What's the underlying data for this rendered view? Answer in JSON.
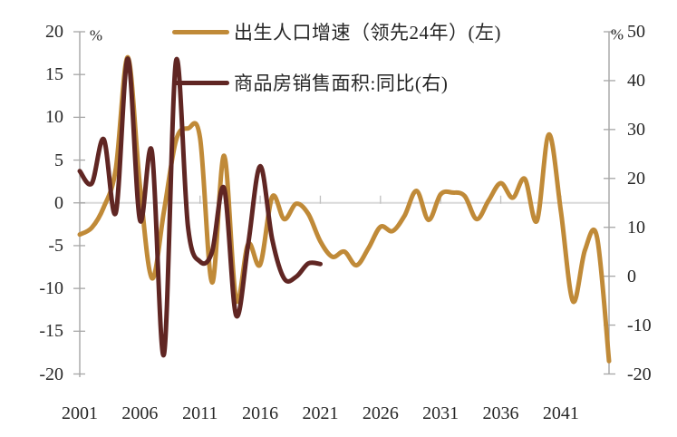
{
  "chart_data": {
    "type": "line",
    "title": "",
    "legend_position": "top",
    "grid": "zero-line-only",
    "x_axis": {
      "tick_labels": [
        "2001",
        "2006",
        "2011",
        "2016",
        "2021",
        "2026",
        "2031",
        "2036",
        "2041"
      ],
      "start_year": 2001,
      "end_year": 2045
    },
    "left_axis": {
      "unit": "%",
      "ticks": [
        "20",
        "15",
        "10",
        "5",
        "0",
        "-5",
        "-10",
        "-15",
        "-20"
      ],
      "min": -20,
      "max": 20
    },
    "right_axis": {
      "unit": "%",
      "ticks": [
        "50",
        "40",
        "30",
        "20",
        "10",
        "0",
        "-10",
        "-20"
      ],
      "min": -20,
      "max": 50
    },
    "series": [
      {
        "name": "出生人口增速（领先24年）(左)",
        "axis": "left",
        "color": "#C08A38",
        "start_year": 2001,
        "years": [
          2001,
          2002,
          2003,
          2004,
          2005,
          2006,
          2007,
          2008,
          2009,
          2010,
          2011,
          2012,
          2013,
          2014,
          2015,
          2016,
          2017,
          2018,
          2019,
          2020,
          2021,
          2022,
          2023,
          2024,
          2025,
          2026,
          2027,
          2028,
          2029,
          2030,
          2031,
          2032,
          2033,
          2034,
          2035,
          2036,
          2037,
          2038,
          2039,
          2040,
          2041,
          2042,
          2043,
          2044,
          2045
        ],
        "values": [
          -3.7,
          -2.9,
          -0.5,
          4.0,
          17.0,
          2.0,
          -8.8,
          -1.0,
          7.3,
          8.7,
          7.6,
          -9.3,
          5.5,
          -11.3,
          -4.8,
          -7.2,
          0.7,
          -1.9,
          -0.1,
          -1.3,
          -4.5,
          -6.3,
          -5.7,
          -7.3,
          -5.3,
          -2.8,
          -3.3,
          -1.5,
          1.4,
          -2.0,
          1.0,
          1.2,
          0.8,
          -1.9,
          0.3,
          2.3,
          0.6,
          2.8,
          -2.1,
          8.0,
          -1.0,
          -11.5,
          -5.5,
          -4.0,
          -18.5
        ]
      },
      {
        "name": "商品房销售面积:同比(右)",
        "axis": "right",
        "color": "#602623",
        "start_year": 2001,
        "years": [
          2001,
          2002,
          2003,
          2004,
          2005,
          2006,
          2007,
          2008,
          2009,
          2010,
          2011,
          2012,
          2013,
          2014,
          2015,
          2016,
          2017,
          2018,
          2019,
          2020,
          2021
        ],
        "values": [
          21.5,
          19.0,
          28.0,
          13.0,
          44.5,
          11.5,
          25.5,
          -16.0,
          44.0,
          10.0,
          3.0,
          5.0,
          18.0,
          -8.0,
          6.5,
          22.5,
          7.5,
          -0.5,
          -0.1,
          2.6,
          2.5
        ]
      }
    ],
    "colors": {
      "gridline": "#D9D9D9",
      "axis": "#A6A6A6",
      "x_tick_stub": "#C0C0C0",
      "text": "#262626"
    }
  }
}
